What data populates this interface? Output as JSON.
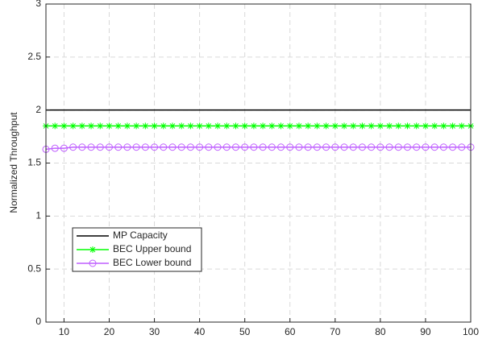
{
  "chart_data": {
    "type": "line",
    "ylabel": "Normalized Throughput",
    "x": [
      6,
      8,
      10,
      12,
      14,
      16,
      18,
      20,
      22,
      24,
      26,
      28,
      30,
      32,
      34,
      36,
      38,
      40,
      42,
      44,
      46,
      48,
      50,
      52,
      54,
      56,
      58,
      60,
      62,
      64,
      66,
      68,
      70,
      72,
      74,
      76,
      78,
      80,
      82,
      84,
      86,
      88,
      90,
      92,
      94,
      96,
      98,
      100
    ],
    "series": [
      {
        "name": "MP Capacity",
        "color": "#000000",
        "marker": "none",
        "values": [
          2,
          2,
          2,
          2,
          2,
          2,
          2,
          2,
          2,
          2,
          2,
          2,
          2,
          2,
          2,
          2,
          2,
          2,
          2,
          2,
          2,
          2,
          2,
          2,
          2,
          2,
          2,
          2,
          2,
          2,
          2,
          2,
          2,
          2,
          2,
          2,
          2,
          2,
          2,
          2,
          2,
          2,
          2,
          2,
          2,
          2,
          2,
          2
        ]
      },
      {
        "name": "BEC Upper bound",
        "color": "#00ff00",
        "marker": "star",
        "values": [
          1.85,
          1.85,
          1.85,
          1.85,
          1.85,
          1.85,
          1.85,
          1.85,
          1.85,
          1.85,
          1.85,
          1.85,
          1.85,
          1.85,
          1.85,
          1.85,
          1.85,
          1.85,
          1.85,
          1.85,
          1.85,
          1.85,
          1.85,
          1.85,
          1.85,
          1.85,
          1.85,
          1.85,
          1.85,
          1.85,
          1.85,
          1.85,
          1.85,
          1.85,
          1.85,
          1.85,
          1.85,
          1.85,
          1.85,
          1.85,
          1.85,
          1.85,
          1.85,
          1.85,
          1.85,
          1.85,
          1.85,
          1.85
        ]
      },
      {
        "name": "BEC Lower bound",
        "color": "#bf5fff",
        "marker": "circle",
        "values": [
          1.63,
          1.64,
          1.64,
          1.65,
          1.65,
          1.65,
          1.65,
          1.65,
          1.65,
          1.65,
          1.65,
          1.65,
          1.65,
          1.65,
          1.65,
          1.65,
          1.65,
          1.65,
          1.65,
          1.65,
          1.65,
          1.65,
          1.65,
          1.65,
          1.65,
          1.65,
          1.65,
          1.65,
          1.65,
          1.65,
          1.65,
          1.65,
          1.65,
          1.65,
          1.65,
          1.65,
          1.65,
          1.65,
          1.65,
          1.65,
          1.65,
          1.65,
          1.65,
          1.65,
          1.65,
          1.65,
          1.65,
          1.65
        ]
      }
    ],
    "xlim": [
      6,
      100
    ],
    "xticks": [
      10,
      20,
      30,
      40,
      50,
      60,
      70,
      80,
      90,
      100
    ],
    "ylim": [
      0,
      3
    ],
    "yticks": [
      0,
      0.5,
      1,
      1.5,
      2,
      2.5,
      3
    ],
    "grid": true,
    "legend": "lower left"
  }
}
